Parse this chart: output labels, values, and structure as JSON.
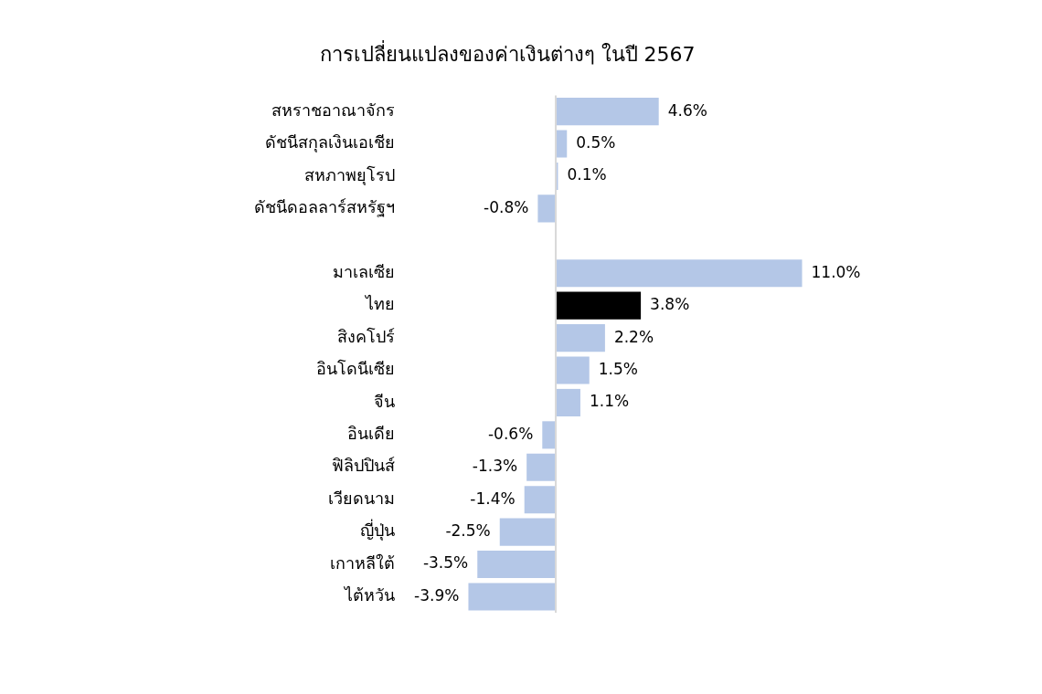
{
  "chart_data": {
    "type": "bar",
    "orientation": "horizontal",
    "title": "การเปลี่ยนแปลงของค่าเงินต่างๆ ในปี 2567",
    "categories": [
      "สหราชอาณาจักร",
      "ดัชนีสกุลเงินเอเชีย",
      "สหภาพยุโรป",
      "ดัชนีดอลลาร์สหรัฐฯ",
      null,
      "มาเลเซีย",
      "ไทย",
      "สิงคโปร์",
      "อินโดนีเซีย",
      "จีน",
      "อินเดีย",
      "ฟิลิปปินส์",
      "เวียดนาม",
      "ญี่ปุ่น",
      "เกาหลีใต้",
      "ไต้หวัน"
    ],
    "values": [
      4.6,
      0.5,
      0.1,
      -0.8,
      null,
      11.0,
      3.8,
      2.2,
      1.5,
      1.1,
      -0.6,
      -1.3,
      -1.4,
      -2.5,
      -3.5,
      -3.9
    ],
    "colors": [
      "#b4c7e7",
      "#b4c7e7",
      "#b4c7e7",
      "#b4c7e7",
      null,
      "#b4c7e7",
      "#000000",
      "#b4c7e7",
      "#b4c7e7",
      "#b4c7e7",
      "#b4c7e7",
      "#b4c7e7",
      "#b4c7e7",
      "#b4c7e7",
      "#b4c7e7",
      "#b4c7e7"
    ],
    "value_labels": [
      "4.6%",
      "0.5%",
      "0.1%",
      "-0.8%",
      null,
      "11.0%",
      "3.8%",
      "2.2%",
      "1.5%",
      "1.1%",
      "-0.6%",
      "-1.3%",
      "-1.4%",
      "-2.5%",
      "-3.5%",
      "-3.9%"
    ],
    "legend": false
  }
}
